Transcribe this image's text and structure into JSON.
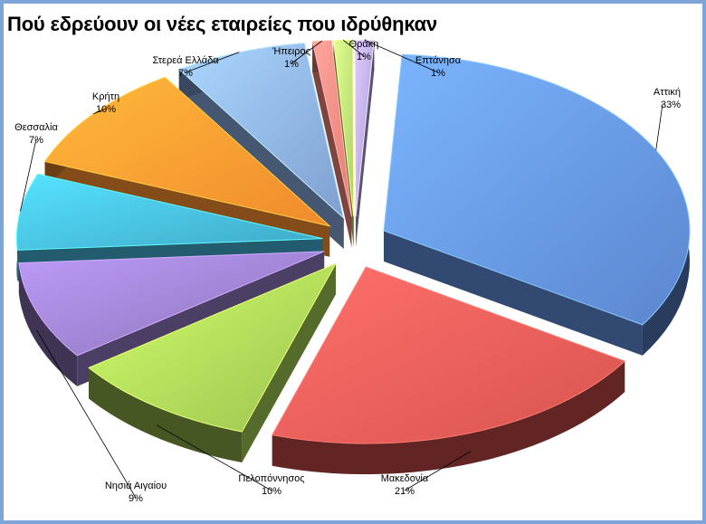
{
  "chart_data": {
    "type": "pie",
    "title": "Πού εδρεύουν οι νέες εταιρείες που ιδρύθηκαν",
    "slices": [
      {
        "label": "Αττική",
        "value": 33,
        "value_label": "33%",
        "color": "#5b86cf"
      },
      {
        "label": "Μακεδονία",
        "value": 21,
        "value_label": "21%",
        "color": "#d9534f"
      },
      {
        "label": "Πελοπόννησος",
        "value": 10,
        "value_label": "10%",
        "color": "#9bc24f"
      },
      {
        "label": "Νησιά Αιγαίου",
        "value": 9,
        "value_label": "9%",
        "color": "#8b73b8"
      },
      {
        "label": "Θεσσαλία",
        "value": 7,
        "value_label": "7%",
        "color": "#3fa8c8"
      },
      {
        "label": "Κρήτη",
        "value": 10,
        "value_label": "10%",
        "color": "#f08a2c"
      },
      {
        "label": "Στερεά Ελλάδα",
        "value": 7,
        "value_label": "7%",
        "color": "#7f9fd0"
      },
      {
        "label": "Ήπειρος",
        "value": 1,
        "value_label": "1%",
        "color": "#e57b74"
      },
      {
        "label": "Θράκη",
        "value": 1,
        "value_label": "1%",
        "color": "#a9d06a"
      },
      {
        "label": "Επτάνησα",
        "value": 1,
        "value_label": "1%",
        "color": "#a597cf"
      }
    ]
  }
}
